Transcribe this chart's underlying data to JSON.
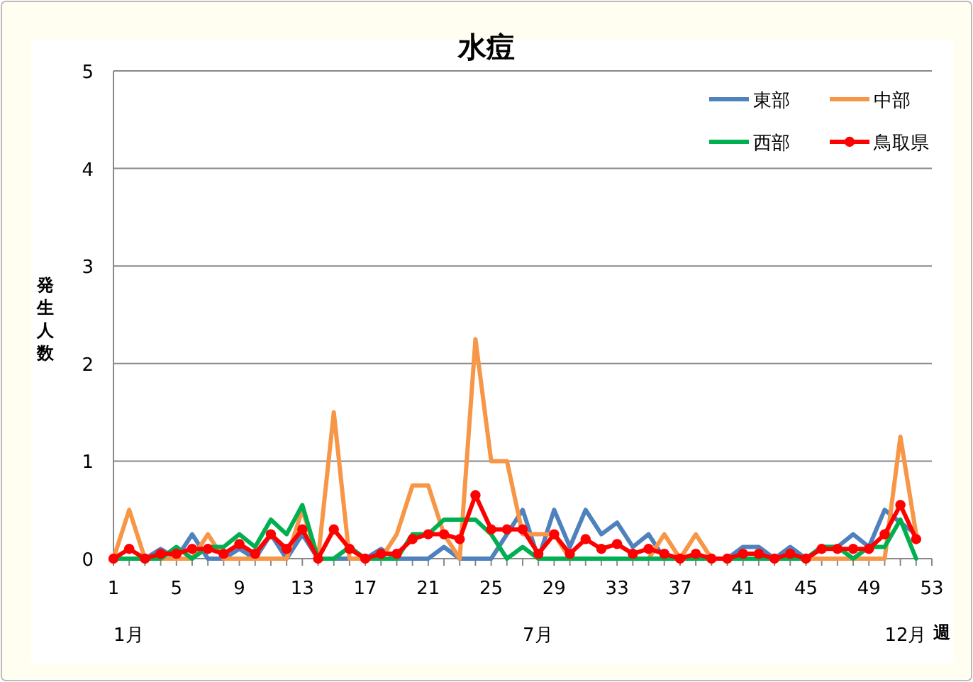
{
  "chart_data": {
    "type": "line",
    "title": "水痘",
    "ylabel": "発生人数",
    "xlabel": "週",
    "categories": [
      "1",
      null,
      null,
      null,
      "5",
      null,
      null,
      null,
      "9",
      null,
      null,
      null,
      "13",
      null,
      null,
      null,
      "17",
      null,
      null,
      null,
      "21",
      null,
      null,
      null,
      "25",
      null,
      null,
      null,
      "29",
      null,
      null,
      null,
      "33",
      null,
      null,
      null,
      "37",
      null,
      null,
      null,
      "41",
      null,
      null,
      null,
      "45",
      null,
      null,
      null,
      "49",
      null,
      null,
      null,
      "53"
    ],
    "ylim": [
      0,
      5
    ],
    "yticks": [
      0,
      1,
      2,
      3,
      4,
      5
    ],
    "grid": "y",
    "legend": "top right",
    "annotations": [
      "1月",
      "7月",
      "12月"
    ],
    "series": [
      {
        "name": "東部",
        "color": "#4f81bd",
        "marker": "none",
        "values": [
          0,
          0,
          0,
          0.1,
          0,
          0.25,
          0,
          0,
          0.1,
          0,
          0.25,
          0,
          0.25,
          0,
          0,
          0,
          0,
          0.1,
          0,
          0,
          0,
          0.12,
          0,
          0,
          0,
          0.25,
          0.5,
          0,
          0.5,
          0.12,
          0.5,
          0.25,
          0.37,
          0.12,
          0.25,
          0,
          0,
          0,
          0,
          0,
          0.12,
          0.12,
          0,
          0.12,
          0,
          0.12,
          0.12,
          0.25,
          0.12,
          0.5,
          0.37,
          0.25,
          null
        ]
      },
      {
        "name": "中部",
        "color": "#f79646",
        "marker": "none",
        "values": [
          0,
          0.5,
          0,
          0,
          0,
          0,
          0.25,
          0,
          0,
          0,
          0,
          0,
          0.5,
          0,
          1.5,
          0,
          0,
          0,
          0.25,
          0.75,
          0.75,
          0.25,
          0,
          2.25,
          1.0,
          1.0,
          0.25,
          0.25,
          0.25,
          0,
          0,
          0,
          0,
          0,
          0,
          0.25,
          0,
          0.25,
          0,
          0,
          0,
          0,
          0,
          0,
          0,
          0,
          0,
          0,
          0,
          0,
          1.25,
          0.25,
          null
        ]
      },
      {
        "name": "西部",
        "color": "#00b050",
        "marker": "none",
        "values": [
          0,
          0,
          0,
          0,
          0.12,
          0,
          0.12,
          0.12,
          0.25,
          0.12,
          0.4,
          0.25,
          0.55,
          0,
          0,
          0.12,
          0,
          0,
          0,
          0.25,
          0.25,
          0.4,
          0.4,
          0.4,
          0.25,
          0,
          0.12,
          0,
          0,
          0,
          0,
          0,
          0,
          0,
          0,
          0,
          0,
          0,
          0,
          0,
          0,
          0,
          0,
          0,
          0,
          0.12,
          0.12,
          0,
          0.12,
          0.12,
          0.4,
          0,
          null
        ]
      },
      {
        "name": "鳥取県",
        "color": "#ff0000",
        "marker": "circle",
        "values": [
          0,
          0.1,
          0,
          0.05,
          0.05,
          0.1,
          0.1,
          0.05,
          0.15,
          0.05,
          0.25,
          0.1,
          0.3,
          0,
          0.3,
          0.1,
          0,
          0.05,
          0.05,
          0.2,
          0.25,
          0.25,
          0.2,
          0.65,
          0.3,
          0.3,
          0.3,
          0.05,
          0.25,
          0.05,
          0.2,
          0.1,
          0.15,
          0.05,
          0.1,
          0.05,
          0,
          0.05,
          0,
          0,
          0.05,
          0.05,
          0,
          0.05,
          0,
          0.1,
          0.1,
          0.1,
          0.1,
          0.25,
          0.55,
          0.2,
          null
        ]
      }
    ]
  }
}
